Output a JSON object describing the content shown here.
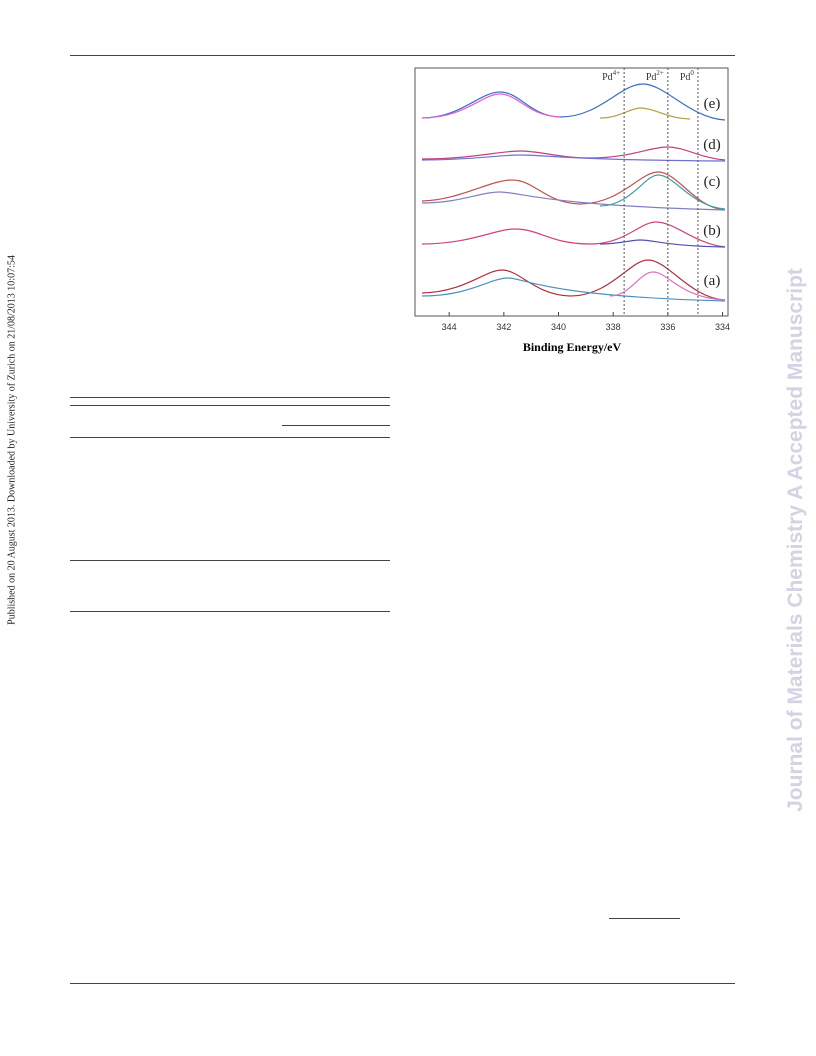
{
  "sidebar": "Published on 20 August 2013. Downloaded by University of Zurich on 21/08/2013 10:07:54",
  "watermark": "Journal of Materials Chemistry A Accepted Manuscript",
  "figure": {
    "xlabel": "Binding Energy/eV",
    "xlim": [
      345.25,
      333.8
    ],
    "xticks": [
      344,
      342,
      340,
      338,
      336,
      334
    ],
    "reference_lines": [
      {
        "base": "Pd",
        "sup": "4+",
        "value": 337.6
      },
      {
        "base": "Pd",
        "sup": "2+",
        "value": 336.0
      },
      {
        "base": "Pd",
        "sup": "0",
        "value": 334.9
      }
    ],
    "spectrum_labels": [
      "(e)",
      "(d)",
      "(c)",
      "(b)",
      "(a)"
    ]
  }
}
